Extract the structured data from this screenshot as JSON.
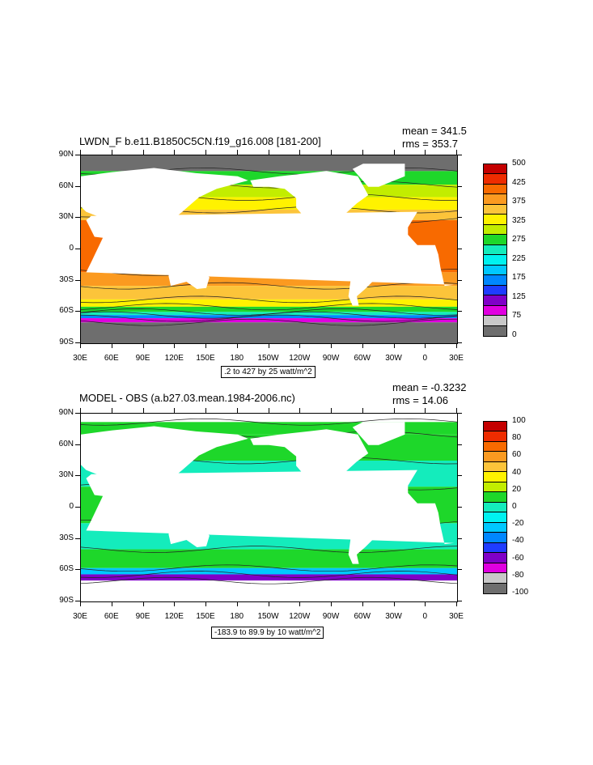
{
  "panels": [
    {
      "title": "LWDN_F b.e11.B1850C5CN.f19_g16.008 [181-200]",
      "mean": "mean = 341.5",
      "rms": "rms = 353.7",
      "contour_info": ".2 to 427 by 25 watt/m^2",
      "colorbar": {
        "labels": [
          "500",
          "425",
          "375",
          "325",
          "275",
          "225",
          "175",
          "125",
          "75",
          "0"
        ],
        "colors": [
          "#c40000",
          "#ee2c00",
          "#f86a00",
          "#fb9a20",
          "#fcc43a",
          "#fff200",
          "#c2ed00",
          "#1ed72a",
          "#14ecbc",
          "#00f2f0",
          "#00c8ff",
          "#0087ff",
          "#1f3cff",
          "#8000c8",
          "#e000e0",
          "#c8c8c8",
          "#6e6e6e"
        ]
      },
      "lat_labels": [
        "90N",
        "60N",
        "30N",
        "0",
        "30S",
        "60S",
        "90S"
      ],
      "lon_labels": [
        "30E",
        "60E",
        "90E",
        "120E",
        "150E",
        "180",
        "150W",
        "120W",
        "90W",
        "60W",
        "30W",
        "0",
        "30E"
      ],
      "bands": [
        {
          "lat": [
            90,
            75
          ],
          "color": "#6e6e6e"
        },
        {
          "lat": [
            75,
            62
          ],
          "color": "#1ed72a"
        },
        {
          "lat": [
            62,
            50
          ],
          "color": "#c2ed00"
        },
        {
          "lat": [
            50,
            38
          ],
          "color": "#fff200"
        },
        {
          "lat": [
            38,
            28
          ],
          "color": "#fcc43a"
        },
        {
          "lat": [
            28,
            -22
          ],
          "color": "#f86a00"
        },
        {
          "lat": [
            -22,
            -35
          ],
          "color": "#fb9a20"
        },
        {
          "lat": [
            -35,
            -48
          ],
          "color": "#fcc43a"
        },
        {
          "lat": [
            -48,
            -55
          ],
          "color": "#fff200"
        },
        {
          "lat": [
            -55,
            -60
          ],
          "color": "#1ed72a"
        },
        {
          "lat": [
            -60,
            -63
          ],
          "color": "#14ecbc"
        },
        {
          "lat": [
            -63,
            -66
          ],
          "color": "#0087ff"
        },
        {
          "lat": [
            -66,
            -70
          ],
          "color": "#e000e0"
        },
        {
          "lat": [
            -70,
            -90
          ],
          "color": "#6e6e6e"
        }
      ]
    },
    {
      "title": "MODEL - OBS (a.b27.03.mean.1984-2006.nc)",
      "mean": "mean = -0.3232",
      "rms": "rms = 14.06",
      "contour_info": "-183.9 to 89.9 by 10 watt/m^2",
      "colorbar": {
        "labels": [
          "100",
          "80",
          "60",
          "40",
          "20",
          "0",
          "-20",
          "-40",
          "-60",
          "-80",
          "-100"
        ],
        "colors": [
          "#c40000",
          "#ee2c00",
          "#f86a00",
          "#fb9a20",
          "#fcc43a",
          "#fff200",
          "#c2ed00",
          "#1ed72a",
          "#14ecbc",
          "#00f2f0",
          "#00c8ff",
          "#0087ff",
          "#1f3cff",
          "#8000c8",
          "#e000e0",
          "#c8c8c8",
          "#6e6e6e"
        ]
      },
      "lat_labels": [
        "90N",
        "60N",
        "30N",
        "0",
        "30S",
        "60S",
        "90S"
      ],
      "lon_labels": [
        "30E",
        "60E",
        "90E",
        "120E",
        "150E",
        "180",
        "150W",
        "120W",
        "90W",
        "60W",
        "30W",
        "0",
        "30E"
      ],
      "bands": [
        {
          "lat": [
            90,
            82
          ],
          "color": "#ffffff"
        },
        {
          "lat": [
            82,
            70
          ],
          "color": "#1ed72a"
        },
        {
          "lat": [
            70,
            45
          ],
          "color": "#1ed72a"
        },
        {
          "lat": [
            45,
            20
          ],
          "color": "#14ecbc"
        },
        {
          "lat": [
            20,
            -15
          ],
          "color": "#1ed72a"
        },
        {
          "lat": [
            -15,
            -40
          ],
          "color": "#14ecbc"
        },
        {
          "lat": [
            -40,
            -58
          ],
          "color": "#1ed72a"
        },
        {
          "lat": [
            -58,
            -64
          ],
          "color": "#00c8ff"
        },
        {
          "lat": [
            -64,
            -70
          ],
          "color": "#8000c8"
        },
        {
          "lat": [
            -70,
            -90
          ],
          "color": "#ffffff"
        }
      ]
    }
  ]
}
